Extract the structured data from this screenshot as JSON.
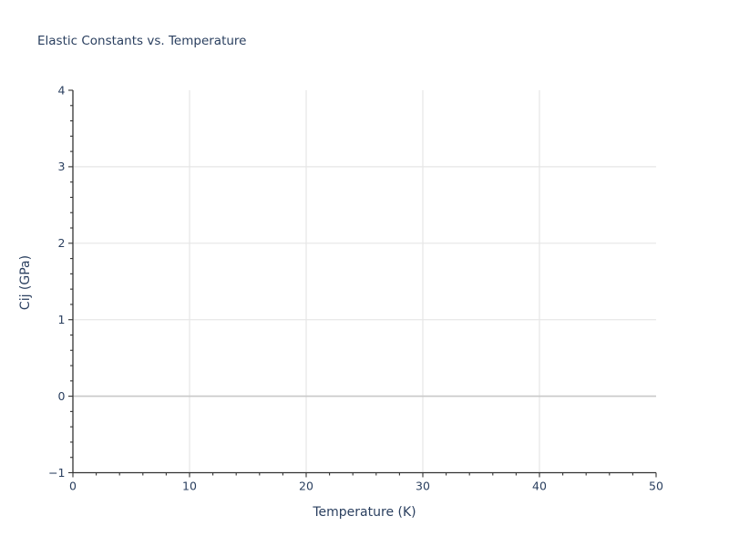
{
  "chart_data": {
    "type": "line",
    "title": "Elastic Constants vs. Temperature",
    "xlabel": "Temperature (K)",
    "ylabel": "Cij (GPa)",
    "xlim": [
      0,
      50
    ],
    "ylim": [
      -1,
      4
    ],
    "x_major_ticks": [
      0,
      10,
      20,
      30,
      40,
      50
    ],
    "x_minor_tick_step": 2,
    "y_major_ticks": [
      -1,
      0,
      1,
      2,
      3,
      4
    ],
    "y_minor_tick_step": 0.2,
    "x_gridlines": [
      10,
      20,
      30,
      40
    ],
    "y_gridlines": [
      1,
      2,
      3
    ],
    "zero_line_y": 0,
    "grid": true,
    "legend": false,
    "series": [],
    "colors": {
      "background": "#ffffff",
      "text": "#2a3f5f",
      "axis_line": "#333333",
      "tick": "#333333",
      "gridline": "#e6e6e6",
      "zero_line": "#c8c8c8"
    }
  }
}
